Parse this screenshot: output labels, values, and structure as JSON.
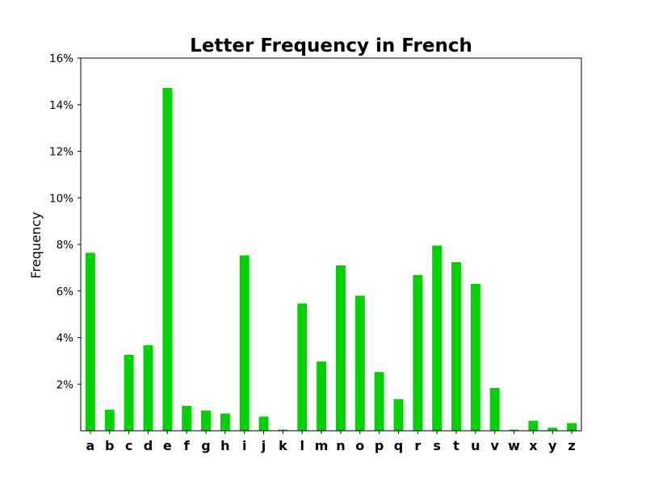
{
  "chart_data": {
    "type": "bar",
    "title": "Letter Frequency in French",
    "xlabel": "",
    "ylabel": "Frequency",
    "categories": [
      "a",
      "b",
      "c",
      "d",
      "e",
      "f",
      "g",
      "h",
      "i",
      "j",
      "k",
      "l",
      "m",
      "n",
      "o",
      "p",
      "q",
      "r",
      "s",
      "t",
      "u",
      "v",
      "w",
      "x",
      "y",
      "z"
    ],
    "values": [
      7.64,
      0.9,
      3.26,
      3.67,
      14.72,
      1.07,
      0.87,
      0.74,
      7.53,
      0.61,
      0.05,
      5.46,
      2.97,
      7.1,
      5.8,
      2.52,
      1.36,
      6.69,
      7.95,
      7.24,
      6.31,
      1.84,
      0.05,
      0.43,
      0.13,
      0.33
    ],
    "ylim": [
      0,
      16
    ],
    "yticks": [
      2,
      4,
      6,
      8,
      10,
      12,
      14,
      16
    ],
    "ytick_labels": [
      "2%",
      "4%",
      "6%",
      "8%",
      "10%",
      "12%",
      "14%",
      "16%"
    ],
    "bar_color": "#00d100",
    "grid": false,
    "legend": "none"
  }
}
